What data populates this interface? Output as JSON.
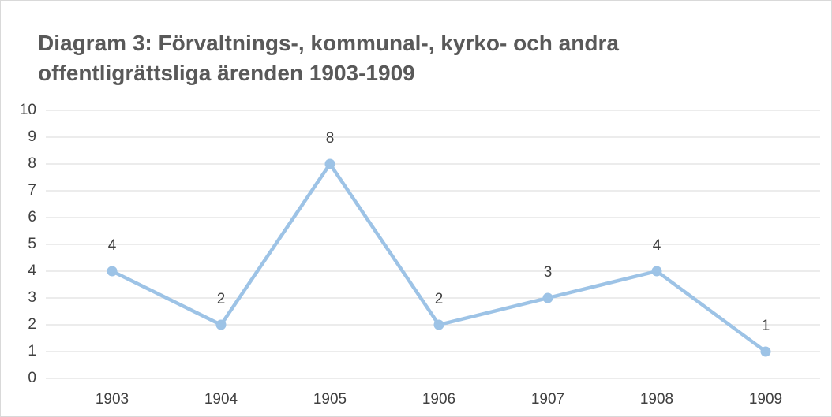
{
  "chart_data": {
    "type": "line",
    "title": "Diagram 3: Förvaltnings-, kommunal-, kyrko- och andra offentligrättsliga ärenden 1903-1909",
    "categories": [
      "1903",
      "1904",
      "1905",
      "1906",
      "1907",
      "1908",
      "1909"
    ],
    "values": [
      4,
      2,
      8,
      2,
      3,
      4,
      1
    ],
    "color": "#9dc3e6",
    "ylim": [
      0,
      10
    ],
    "yticks": [
      0,
      1,
      2,
      3,
      4,
      5,
      6,
      7,
      8,
      9,
      10
    ],
    "grid": true
  }
}
